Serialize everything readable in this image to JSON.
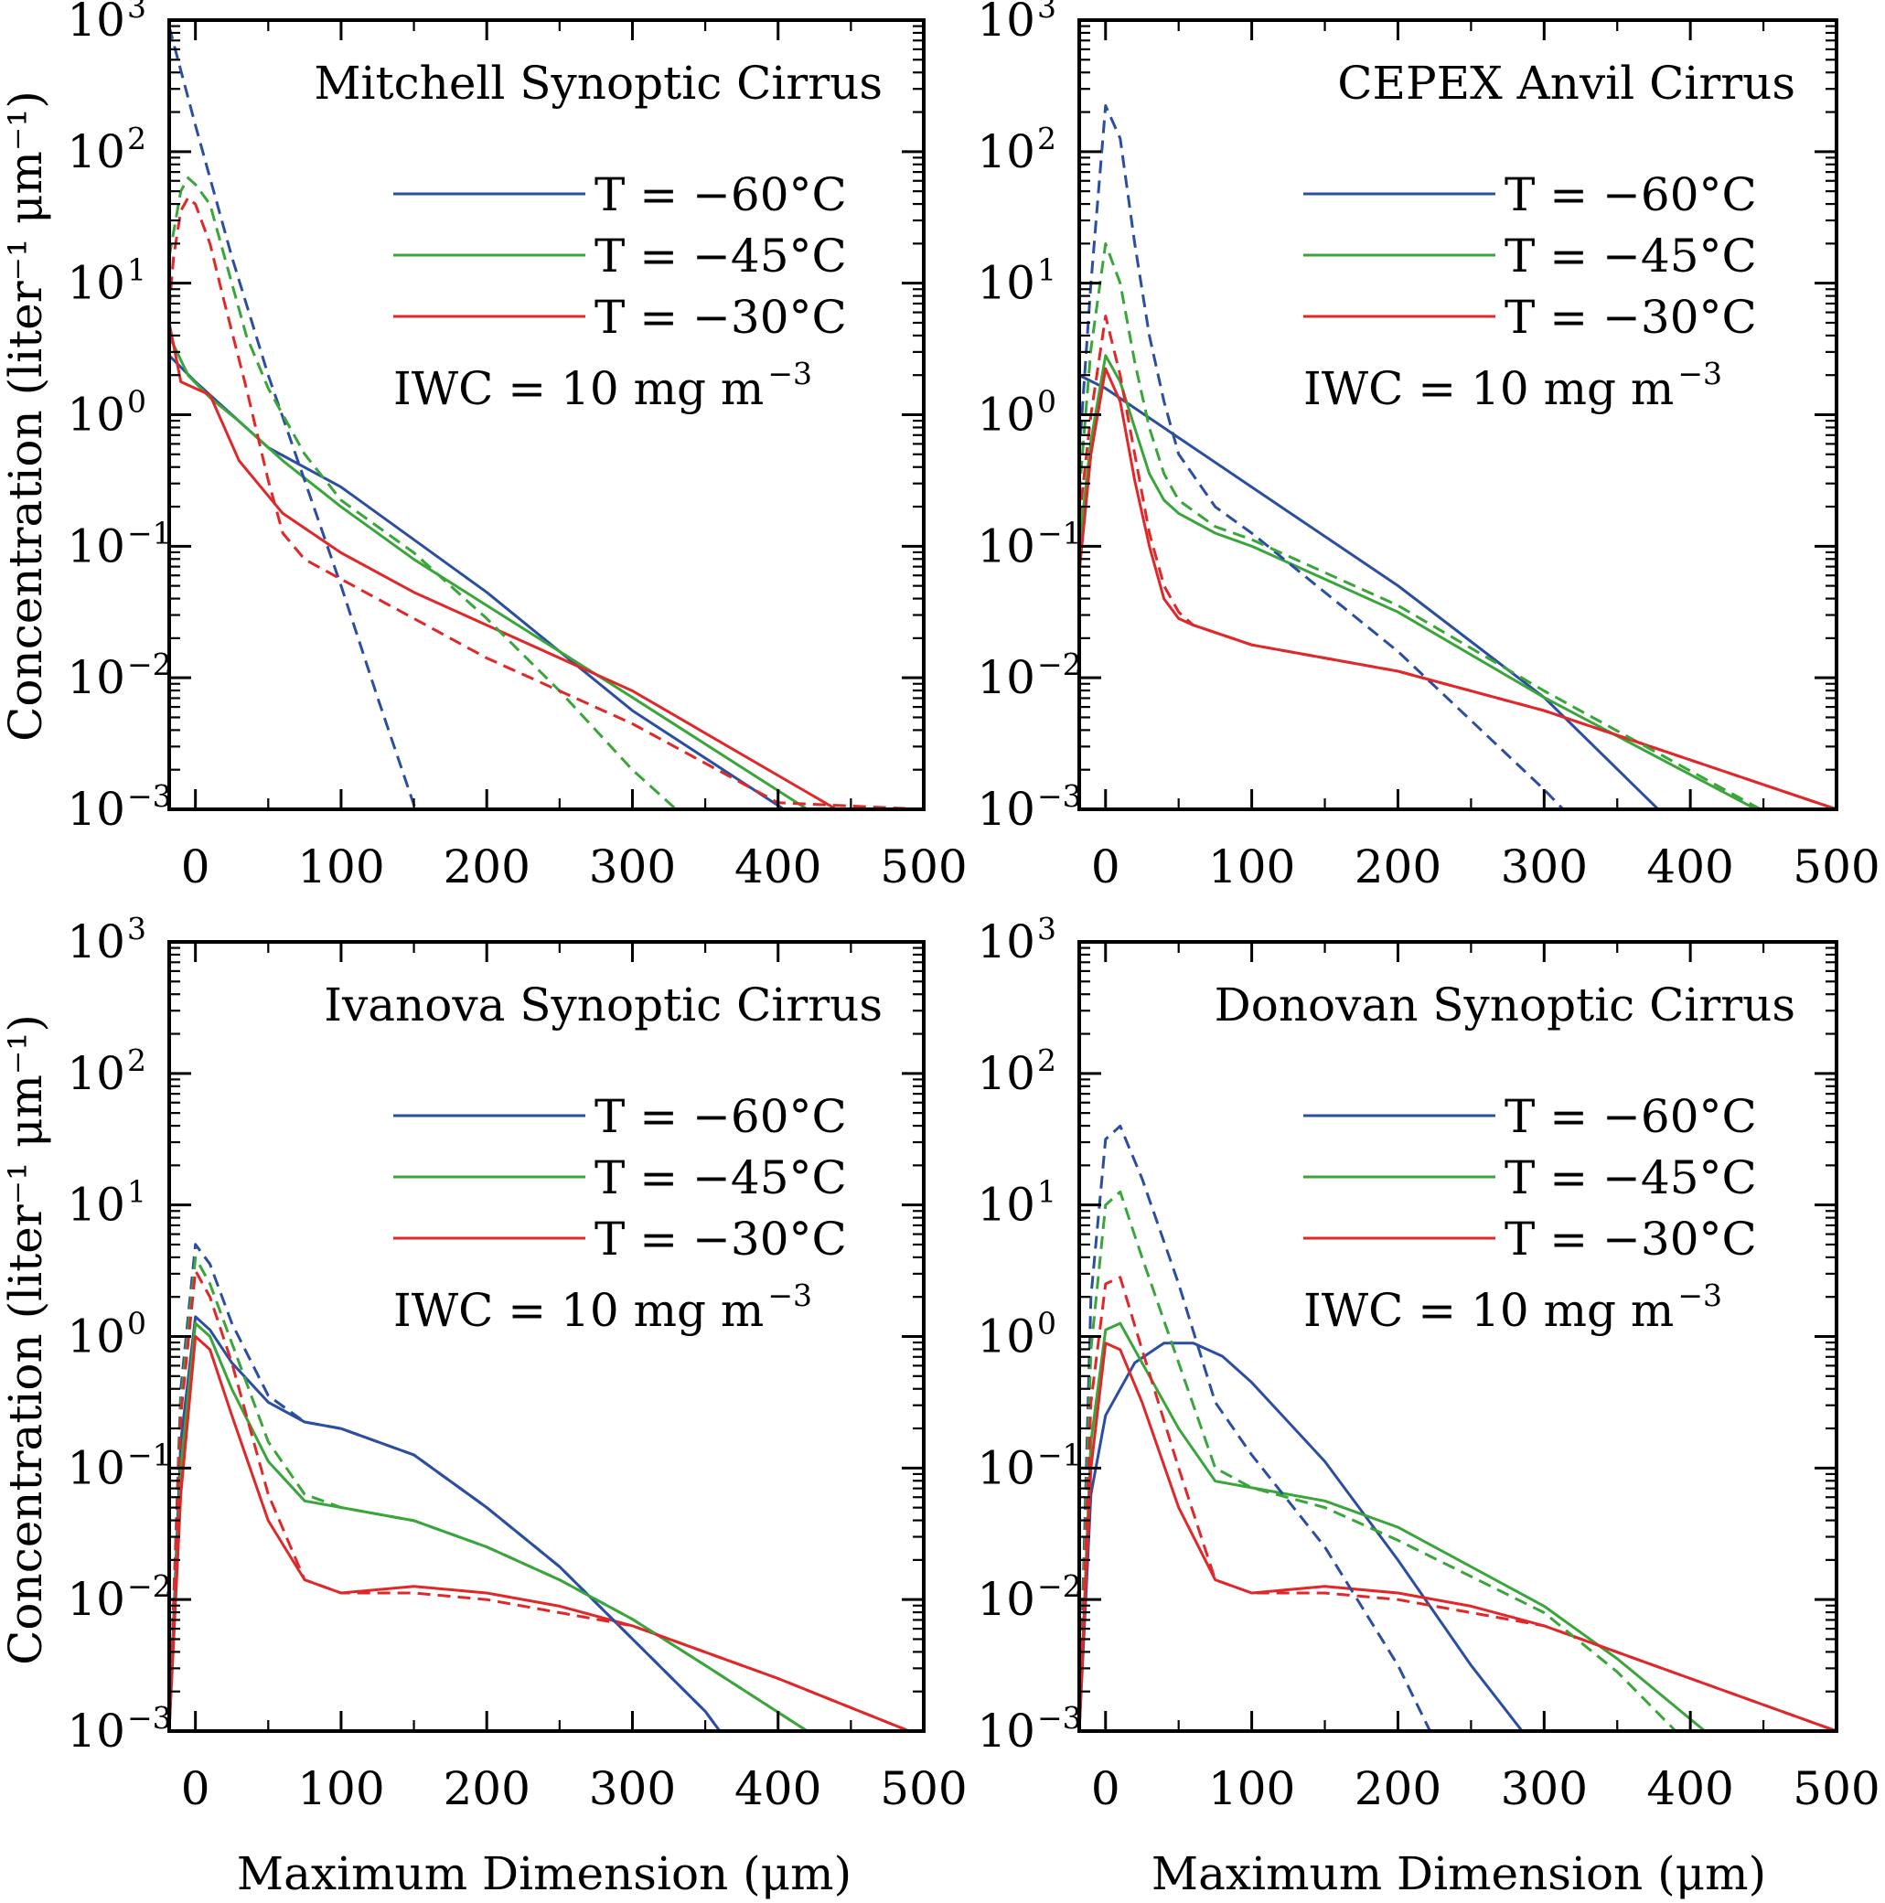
{
  "figure": {
    "xlabel": "Maximum Dimension (μm)",
    "ylabel": "Concentration (liter⁻¹ μm⁻¹)",
    "colors": {
      "T=-60C": "#2b4ea2",
      "T=-45C": "#3aa53a",
      "T=-30C": "#e0282a"
    },
    "legend": {
      "entries": [
        {
          "label": "T  =  −60°C",
          "color": "#2b4ea2"
        },
        {
          "label": "T  =  −45°C",
          "color": "#3aa53a"
        },
        {
          "label": "T  =  −30°C",
          "color": "#e0282a"
        }
      ],
      "iwc_label": "IWC  =  10  mg  m",
      "iwc_exponent": "−3",
      "placement": "upper-right"
    },
    "line_styles": {
      "solid": "model curve",
      "dashed": "comparison curve"
    }
  },
  "chart_data": [
    {
      "type": "line",
      "title": "Mitchell Synoptic Cirrus",
      "x_ticks": [
        0,
        100,
        200,
        300,
        400,
        500
      ],
      "y_ticks": [
        "10^-3",
        "10^-2",
        "10^-1",
        "10^0",
        "10^1",
        "10^2",
        "10^3"
      ],
      "xlim": [
        -18,
        500
      ],
      "ylim_log10": [
        -3,
        3
      ],
      "yscale": "log",
      "series": [
        {
          "color": "#2b4ea2",
          "style": "solid",
          "x": [
            -18,
            0,
            50,
            100,
            200,
            300,
            404
          ],
          "log10y": [
            0.45,
            0.25,
            -0.25,
            -0.55,
            -1.35,
            -2.25,
            -3
          ]
        },
        {
          "color": "#3aa53a",
          "style": "solid",
          "x": [
            -18,
            -5,
            10,
            30,
            60,
            100,
            150,
            200,
            300,
            420
          ],
          "log10y": [
            0.6,
            0.3,
            0.13,
            -0.05,
            -0.35,
            -0.7,
            -1.1,
            -1.45,
            -2.15,
            -3
          ]
        },
        {
          "color": "#e0282a",
          "style": "solid",
          "x": [
            -18,
            -10,
            0,
            10,
            30,
            60,
            100,
            150,
            200,
            300,
            440
          ],
          "log10y": [
            0.7,
            0.25,
            0.2,
            0.15,
            -0.35,
            -0.75,
            -1.05,
            -1.35,
            -1.6,
            -2.1,
            -3
          ]
        },
        {
          "color": "#2b4ea2",
          "style": "dashed",
          "x": [
            -18,
            0,
            25,
            50,
            75,
            100,
            125,
            151
          ],
          "log10y": [
            2.95,
            2.2,
            1.2,
            0.3,
            -0.5,
            -1.3,
            -2.15,
            -3
          ]
        },
        {
          "color": "#3aa53a",
          "style": "dashed",
          "x": [
            -18,
            -10,
            -5,
            0,
            10,
            20,
            35,
            50,
            75,
            100,
            150,
            200,
            250,
            300,
            330
          ],
          "log10y": [
            1.2,
            1.7,
            1.8,
            1.75,
            1.6,
            1.2,
            0.6,
            0.2,
            -0.3,
            -0.65,
            -1.05,
            -1.55,
            -2.1,
            -2.7,
            -3
          ]
        },
        {
          "color": "#e0282a",
          "style": "dashed",
          "x": [
            -18,
            -15,
            -10,
            -5,
            0,
            10,
            20,
            35,
            50,
            60,
            75,
            100,
            150,
            200,
            300,
            400
          ],
          "log10y": [
            0.8,
            1.2,
            1.55,
            1.65,
            1.6,
            1.3,
            0.85,
            0.2,
            -0.5,
            -0.9,
            -1.1,
            -1.25,
            -1.55,
            -1.85,
            -2.35,
            -2.95
          ]
        }
      ]
    },
    {
      "type": "line",
      "title": "CEPEX Anvil Cirrus",
      "x_ticks": [
        0,
        100,
        200,
        300,
        400,
        500
      ],
      "y_ticks": [
        "10^-3",
        "10^-2",
        "10^-1",
        "10^0",
        "10^1",
        "10^2",
        "10^3"
      ],
      "xlim": [
        -18,
        500
      ],
      "ylim_log10": [
        -3,
        3
      ],
      "yscale": "log",
      "series": [
        {
          "color": "#2b4ea2",
          "style": "solid",
          "x": [
            -18,
            0,
            100,
            200,
            300,
            378
          ],
          "log10y": [
            0.3,
            0.2,
            -0.55,
            -1.3,
            -2.15,
            -3
          ]
        },
        {
          "color": "#3aa53a",
          "style": "solid",
          "x": [
            -18,
            -10,
            0,
            10,
            20,
            30,
            40,
            50,
            75,
            100,
            200,
            300,
            445
          ],
          "log10y": [
            -1.0,
            -0.2,
            0.45,
            0.25,
            -0.1,
            -0.45,
            -0.65,
            -0.75,
            -0.9,
            -1.0,
            -1.5,
            -2.15,
            -3
          ]
        },
        {
          "color": "#e0282a",
          "style": "solid",
          "x": [
            -18,
            -10,
            0,
            10,
            20,
            30,
            40,
            50,
            60,
            100,
            200,
            300,
            500
          ],
          "log10y": [
            -1.2,
            -0.3,
            0.35,
            0.1,
            -0.5,
            -1.0,
            -1.4,
            -1.55,
            -1.6,
            -1.75,
            -1.95,
            -2.25,
            -3
          ]
        },
        {
          "color": "#2b4ea2",
          "style": "dashed",
          "x": [
            -18,
            -10,
            0,
            10,
            20,
            30,
            40,
            50,
            75,
            100,
            200,
            300,
            313
          ],
          "log10y": [
            -0.3,
            1.0,
            2.35,
            2.1,
            1.3,
            0.6,
            0.1,
            -0.3,
            -0.7,
            -0.9,
            -1.8,
            -2.85,
            -3
          ]
        },
        {
          "color": "#3aa53a",
          "style": "dashed",
          "x": [
            -18,
            -10,
            0,
            10,
            20,
            30,
            40,
            50,
            75,
            100,
            200,
            300,
            448
          ],
          "log10y": [
            -0.6,
            0.5,
            1.3,
            1.0,
            0.4,
            -0.1,
            -0.45,
            -0.65,
            -0.85,
            -0.95,
            -1.45,
            -2.1,
            -3
          ]
        },
        {
          "color": "#e0282a",
          "style": "dashed",
          "x": [
            -18,
            -10,
            0,
            10,
            20,
            30,
            40,
            50,
            60,
            100,
            200,
            300,
            500
          ],
          "log10y": [
            -0.8,
            0.0,
            0.75,
            0.3,
            -0.3,
            -0.9,
            -1.3,
            -1.5,
            -1.6,
            -1.75,
            -1.95,
            -2.25,
            -3
          ]
        }
      ]
    },
    {
      "type": "line",
      "title": "Ivanova Synoptic Cirrus",
      "x_ticks": [
        0,
        100,
        200,
        300,
        400,
        500
      ],
      "y_ticks": [
        "10^-3",
        "10^-2",
        "10^-1",
        "10^0",
        "10^1",
        "10^2",
        "10^3"
      ],
      "xlim": [
        -18,
        500
      ],
      "ylim_log10": [
        -3,
        3
      ],
      "yscale": "log",
      "series": [
        {
          "color": "#2b4ea2",
          "style": "solid",
          "x": [
            -18,
            -10,
            0,
            10,
            25,
            50,
            75,
            100,
            150,
            200,
            250,
            300,
            350,
            360
          ],
          "log10y": [
            -3,
            -0.8,
            0.15,
            0.05,
            -0.2,
            -0.5,
            -0.65,
            -0.7,
            -0.9,
            -1.3,
            -1.75,
            -2.3,
            -2.85,
            -3
          ]
        },
        {
          "color": "#3aa53a",
          "style": "solid",
          "x": [
            -18,
            -10,
            0,
            10,
            25,
            50,
            75,
            100,
            150,
            200,
            250,
            300,
            350,
            420
          ],
          "log10y": [
            -3,
            -1.0,
            0.1,
            0.0,
            -0.4,
            -0.95,
            -1.25,
            -1.3,
            -1.4,
            -1.6,
            -1.85,
            -2.15,
            -2.5,
            -3
          ]
        },
        {
          "color": "#e0282a",
          "style": "solid",
          "x": [
            -18,
            -10,
            0,
            10,
            25,
            50,
            75,
            100,
            150,
            200,
            250,
            300,
            350,
            400,
            490
          ],
          "log10y": [
            -3,
            -1.2,
            0.0,
            -0.1,
            -0.6,
            -1.4,
            -1.85,
            -1.95,
            -1.9,
            -1.95,
            -2.05,
            -2.2,
            -2.4,
            -2.6,
            -3
          ]
        },
        {
          "color": "#2b4ea2",
          "style": "dashed",
          "x": [
            -18,
            -10,
            0,
            10,
            25,
            50,
            75,
            100,
            150,
            200,
            250,
            300,
            350,
            360
          ],
          "log10y": [
            -3,
            -0.4,
            0.7,
            0.55,
            0.1,
            -0.45,
            -0.65,
            -0.7,
            -0.9,
            -1.3,
            -1.75,
            -2.3,
            -2.85,
            -3
          ]
        },
        {
          "color": "#3aa53a",
          "style": "dashed",
          "x": [
            -18,
            -10,
            0,
            10,
            25,
            50,
            75,
            100,
            150,
            200,
            250,
            300,
            350,
            420
          ],
          "log10y": [
            -3,
            -0.5,
            0.6,
            0.4,
            -0.05,
            -0.8,
            -1.2,
            -1.3,
            -1.4,
            -1.6,
            -1.85,
            -2.15,
            -2.5,
            -3
          ]
        },
        {
          "color": "#e0282a",
          "style": "dashed",
          "x": [
            -18,
            -10,
            0,
            10,
            25,
            50,
            75,
            100,
            150,
            200,
            250,
            300,
            350,
            400,
            490
          ],
          "log10y": [
            -3,
            -0.6,
            0.5,
            0.3,
            -0.2,
            -1.2,
            -1.85,
            -1.95,
            -1.95,
            -2.0,
            -2.1,
            -2.2,
            -2.4,
            -2.6,
            -3
          ]
        }
      ]
    },
    {
      "type": "line",
      "title": "Donovan Synoptic Cirrus",
      "x_ticks": [
        0,
        100,
        200,
        300,
        400,
        500
      ],
      "y_ticks": [
        "10^-3",
        "10^-2",
        "10^-1",
        "10^0",
        "10^1",
        "10^2",
        "10^3"
      ],
      "xlim": [
        -18,
        500
      ],
      "ylim_log10": [
        -3,
        3
      ],
      "yscale": "log",
      "series": [
        {
          "color": "#2b4ea2",
          "style": "solid",
          "x": [
            -18,
            -10,
            0,
            20,
            40,
            60,
            80,
            100,
            150,
            200,
            250,
            285
          ],
          "log10y": [
            -3,
            -1.2,
            -0.6,
            -0.2,
            -0.05,
            -0.05,
            -0.15,
            -0.35,
            -0.95,
            -1.7,
            -2.5,
            -3
          ]
        },
        {
          "color": "#3aa53a",
          "style": "solid",
          "x": [
            -18,
            -10,
            0,
            10,
            25,
            50,
            75,
            100,
            150,
            200,
            300,
            350,
            410
          ],
          "log10y": [
            -3,
            -0.8,
            0.05,
            0.1,
            -0.2,
            -0.7,
            -1.1,
            -1.15,
            -1.25,
            -1.45,
            -2.05,
            -2.45,
            -3
          ]
        },
        {
          "color": "#e0282a",
          "style": "solid",
          "x": [
            -18,
            -10,
            0,
            10,
            25,
            50,
            75,
            100,
            150,
            200,
            250,
            300,
            350,
            400,
            500
          ],
          "log10y": [
            -3,
            -1.0,
            -0.05,
            -0.1,
            -0.5,
            -1.3,
            -1.85,
            -1.95,
            -1.9,
            -1.95,
            -2.05,
            -2.2,
            -2.4,
            -2.6,
            -3
          ]
        },
        {
          "color": "#2b4ea2",
          "style": "dashed",
          "x": [
            -18,
            -10,
            0,
            10,
            25,
            50,
            75,
            100,
            150,
            200,
            222
          ],
          "log10y": [
            -3,
            0.3,
            1.5,
            1.6,
            1.2,
            0.4,
            -0.5,
            -0.9,
            -1.6,
            -2.5,
            -3
          ]
        },
        {
          "color": "#3aa53a",
          "style": "dashed",
          "x": [
            -18,
            -10,
            0,
            10,
            25,
            50,
            75,
            100,
            150,
            200,
            300,
            350,
            390
          ],
          "log10y": [
            -3,
            -0.1,
            1.0,
            1.1,
            0.6,
            -0.2,
            -1.0,
            -1.15,
            -1.3,
            -1.55,
            -2.1,
            -2.55,
            -3
          ]
        },
        {
          "color": "#e0282a",
          "style": "dashed",
          "x": [
            -18,
            -10,
            0,
            10,
            25,
            50,
            75,
            100,
            150,
            200,
            250,
            300,
            350,
            400,
            500
          ],
          "log10y": [
            -3,
            -0.5,
            0.4,
            0.45,
            -0.1,
            -1.0,
            -1.85,
            -1.95,
            -1.95,
            -2.0,
            -2.1,
            -2.2,
            -2.4,
            -2.6,
            -3
          ]
        }
      ]
    }
  ]
}
